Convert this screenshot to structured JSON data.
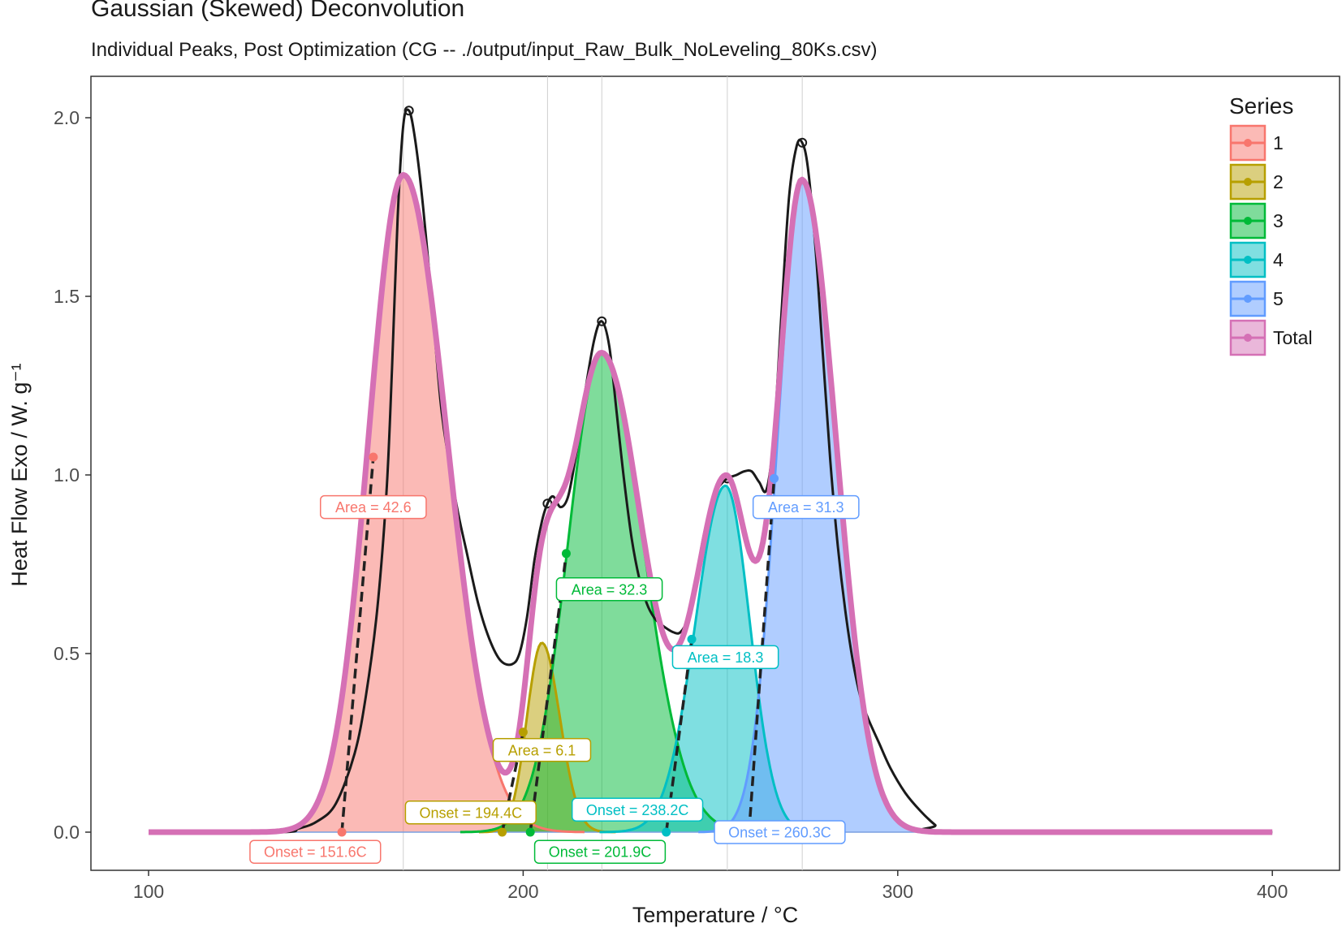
{
  "chart_data": {
    "type": "area",
    "title": "Gaussian (Skewed) Deconvolution",
    "subtitle": "Individual Peaks, Post Optimization (CG -- ./output/input_Raw_Bulk_NoLeveling_80Ks.csv)",
    "xlabel": "Temperature / °C",
    "ylabel": "Heat Flow Exo / W. g⁻¹",
    "xlim": [
      85,
      415
    ],
    "ylim": [
      -0.11,
      2.2
    ],
    "x_ticks": [
      100,
      200,
      300,
      400
    ],
    "y_ticks": [
      0.0,
      0.5,
      1.0,
      1.5,
      2.0
    ],
    "y_tick_labels": [
      "0.0",
      "0.5",
      "1.0",
      "1.5",
      "2.0"
    ],
    "grid": true,
    "legend_title": "Series",
    "legend_position": "top-right",
    "vlines_x": [
      168,
      206.5,
      221,
      254.5,
      274.5
    ],
    "peaks": [
      {
        "series": "1",
        "color": "#F8766D",
        "center": 168,
        "height": 1.84,
        "sigma_left": 9.2,
        "sigma_right": 11.6,
        "area_label": "Area = 42.6",
        "onset_label": "Onset = 151.6C",
        "onset_x": 151.6,
        "inflection": [
          160,
          1.05
        ]
      },
      {
        "series": "2",
        "color": "#B79F00",
        "center": 205,
        "height": 0.53,
        "sigma_left": 4.0,
        "sigma_right": 4.8,
        "area_label": "Area = 6.1",
        "onset_label": "Onset = 194.4C",
        "onset_x": 194.4,
        "inflection": [
          200,
          0.28
        ]
      },
      {
        "series": "3",
        "color": "#00BA38",
        "center": 221,
        "height": 1.34,
        "sigma_left": 9.0,
        "sigma_right": 11.0,
        "area_label": "Area = 32.3",
        "onset_label": "Onset = 201.9C",
        "onset_x": 201.9,
        "inflection": [
          211.5,
          0.78
        ]
      },
      {
        "series": "4",
        "color": "#00BFC4",
        "center": 254,
        "height": 0.97,
        "sigma_left": 8.0,
        "sigma_right": 6.5,
        "area_label": "Area = 18.3",
        "onset_label": "Onset = 238.2C",
        "onset_x": 238.2,
        "inflection": [
          245,
          0.54
        ]
      },
      {
        "series": "5",
        "color": "#619CFF",
        "center": 274.5,
        "height": 1.82,
        "sigma_left": 6.6,
        "sigma_right": 9.0,
        "area_label": "Area = 31.3",
        "onset_label": "Onset = 260.3C",
        "onset_x": 260.3,
        "inflection": [
          267,
          0.99
        ]
      }
    ],
    "total_series": {
      "name": "Total",
      "color": "#D570B5"
    },
    "raw_curve": {
      "color": "#1a1a1a",
      "points": [
        [
          100,
          0.0
        ],
        [
          135,
          0.0
        ],
        [
          140,
          0.01
        ],
        [
          145,
          0.03
        ],
        [
          150,
          0.08
        ],
        [
          155,
          0.22
        ],
        [
          158,
          0.38
        ],
        [
          161,
          0.62
        ],
        [
          163.5,
          0.95
        ],
        [
          165,
          1.3
        ],
        [
          166.5,
          1.72
        ],
        [
          168,
          1.98
        ],
        [
          169.5,
          2.02
        ],
        [
          171,
          1.95
        ],
        [
          173,
          1.78
        ],
        [
          175.5,
          1.5
        ],
        [
          178,
          1.2
        ],
        [
          180,
          1.05
        ],
        [
          182.5,
          0.9
        ],
        [
          185,
          0.78
        ],
        [
          188,
          0.64
        ],
        [
          191,
          0.54
        ],
        [
          194,
          0.48
        ],
        [
          197,
          0.47
        ],
        [
          199,
          0.5
        ],
        [
          201,
          0.6
        ],
        [
          203,
          0.76
        ],
        [
          205,
          0.87
        ],
        [
          206.5,
          0.92
        ],
        [
          208,
          0.94
        ],
        [
          210,
          0.91
        ],
        [
          212,
          0.94
        ],
        [
          214,
          1.05
        ],
        [
          216.5,
          1.23
        ],
        [
          219,
          1.38
        ],
        [
          221,
          1.43
        ],
        [
          223,
          1.36
        ],
        [
          225,
          1.17
        ],
        [
          227,
          0.98
        ],
        [
          229,
          0.82
        ],
        [
          231,
          0.71
        ],
        [
          233,
          0.64
        ],
        [
          235,
          0.6
        ],
        [
          237,
          0.58
        ],
        [
          240,
          0.56
        ],
        [
          242,
          0.56
        ],
        [
          244,
          0.6
        ],
        [
          246,
          0.7
        ],
        [
          248,
          0.82
        ],
        [
          250.5,
          0.93
        ],
        [
          252.5,
          0.97
        ],
        [
          254.5,
          0.99
        ],
        [
          257,
          1.0
        ],
        [
          259,
          1.01
        ],
        [
          261,
          1.01
        ],
        [
          263,
          0.98
        ],
        [
          265,
          0.96
        ],
        [
          267,
          1.12
        ],
        [
          269,
          1.46
        ],
        [
          271,
          1.78
        ],
        [
          273,
          1.92
        ],
        [
          274.5,
          1.93
        ],
        [
          276,
          1.86
        ],
        [
          278,
          1.64
        ],
        [
          280,
          1.34
        ],
        [
          282,
          1.04
        ],
        [
          284,
          0.8
        ],
        [
          286,
          0.62
        ],
        [
          288,
          0.48
        ],
        [
          290,
          0.38
        ],
        [
          292,
          0.32
        ],
        [
          295,
          0.25
        ],
        [
          298,
          0.18
        ],
        [
          302,
          0.11
        ],
        [
          306,
          0.06
        ],
        [
          310,
          0.02
        ],
        [
          313,
          0.0
        ],
        [
          400,
          0.0
        ]
      ],
      "markers": [
        [
          169.5,
          2.02
        ],
        [
          206.5,
          0.92
        ],
        [
          221,
          1.43
        ],
        [
          254.5,
          0.99
        ],
        [
          274.5,
          1.93
        ]
      ]
    }
  },
  "legend": {
    "title": "Series",
    "items": [
      {
        "label": "1",
        "color": "#F8766D"
      },
      {
        "label": "2",
        "color": "#B79F00"
      },
      {
        "label": "3",
        "color": "#00BA38"
      },
      {
        "label": "4",
        "color": "#00BFC4"
      },
      {
        "label": "5",
        "color": "#619CFF"
      },
      {
        "label": "Total",
        "color": "#D570B5"
      }
    ]
  }
}
